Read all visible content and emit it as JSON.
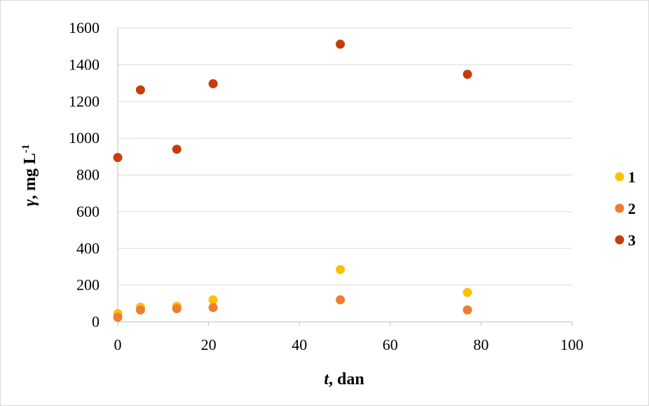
{
  "chart_data": {
    "type": "scatter",
    "title": "",
    "xlabel_italic": "t",
    "xlabel_rest": ", dan",
    "ylabel_italic": "γ",
    "ylabel_rest": ", mg L",
    "ylabel_sup": "-1",
    "xlim": [
      0,
      100
    ],
    "ylim": [
      0,
      1600
    ],
    "x_ticks": [
      0,
      20,
      40,
      60,
      80,
      100
    ],
    "y_ticks": [
      0,
      200,
      400,
      600,
      800,
      1000,
      1200,
      1400,
      1600
    ],
    "grid": "horizontal",
    "legend_position": "right",
    "series": [
      {
        "name": "1",
        "color": "#FFC000",
        "points": [
          [
            0,
            45
          ],
          [
            5,
            80
          ],
          [
            13,
            85
          ],
          [
            21,
            120
          ],
          [
            49,
            285
          ],
          [
            77,
            160
          ]
        ]
      },
      {
        "name": "2",
        "color": "#ED7D31",
        "points": [
          [
            0,
            25
          ],
          [
            5,
            65
          ],
          [
            13,
            72
          ],
          [
            21,
            78
          ],
          [
            49,
            120
          ],
          [
            77,
            65
          ]
        ]
      },
      {
        "name": "3",
        "color": "#C43E0C",
        "points": [
          [
            0,
            895
          ],
          [
            5,
            1263
          ],
          [
            13,
            940
          ],
          [
            21,
            1297
          ],
          [
            49,
            1512
          ],
          [
            77,
            1348
          ]
        ]
      }
    ]
  }
}
